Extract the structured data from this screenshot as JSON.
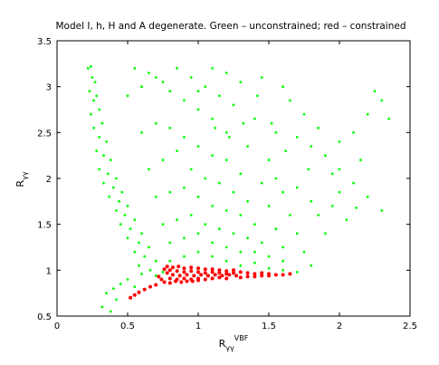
{
  "chart_data": {
    "type": "scatter",
    "title": "Model I, h, H and A degenerate. Green – unconstrained; red – constrained",
    "xlabel": {
      "base": "R",
      "sub": "γγ",
      "sup": "VBF"
    },
    "ylabel": {
      "base": "R",
      "sub": "γγ"
    },
    "xlim": [
      0,
      2.5
    ],
    "ylim": [
      0.5,
      3.5
    ],
    "xticks": [
      "0",
      "0.5",
      "1",
      "1.5",
      "2",
      "2.5"
    ],
    "yticks": [
      "0.5",
      "1",
      "1.5",
      "2",
      "2.5",
      "3",
      "3.5"
    ],
    "grid": false,
    "series": [
      {
        "color": "#00ff00",
        "points": [
          [
            0.22,
            3.2
          ],
          [
            0.24,
            3.22
          ],
          [
            0.25,
            3.1
          ],
          [
            0.27,
            3.05
          ],
          [
            0.23,
            2.95
          ],
          [
            0.26,
            2.85
          ],
          [
            0.28,
            2.9
          ],
          [
            0.3,
            2.75
          ],
          [
            0.24,
            2.7
          ],
          [
            0.32,
            2.6
          ],
          [
            0.26,
            2.55
          ],
          [
            0.3,
            2.45
          ],
          [
            0.35,
            2.4
          ],
          [
            0.28,
            2.3
          ],
          [
            0.33,
            2.25
          ],
          [
            0.38,
            2.2
          ],
          [
            0.3,
            2.1
          ],
          [
            0.36,
            2.05
          ],
          [
            0.42,
            2.0
          ],
          [
            0.33,
            1.95
          ],
          [
            0.4,
            1.9
          ],
          [
            0.46,
            1.85
          ],
          [
            0.37,
            1.8
          ],
          [
            0.44,
            1.75
          ],
          [
            0.5,
            1.7
          ],
          [
            0.42,
            1.65
          ],
          [
            0.48,
            1.6
          ],
          [
            0.55,
            1.55
          ],
          [
            0.45,
            1.5
          ],
          [
            0.52,
            1.45
          ],
          [
            0.6,
            1.4
          ],
          [
            0.5,
            1.35
          ],
          [
            0.58,
            1.3
          ],
          [
            0.65,
            1.25
          ],
          [
            0.55,
            1.2
          ],
          [
            0.62,
            1.15
          ],
          [
            0.7,
            1.1
          ],
          [
            0.58,
            1.05
          ],
          [
            0.66,
            1.0
          ],
          [
            0.75,
            0.98
          ],
          [
            0.6,
            0.96
          ],
          [
            0.7,
            0.94
          ],
          [
            0.5,
            0.9
          ],
          [
            0.45,
            0.85
          ],
          [
            0.4,
            0.8
          ],
          [
            0.35,
            0.75
          ],
          [
            0.32,
            0.6
          ],
          [
            0.38,
            0.55
          ],
          [
            0.42,
            0.68
          ],
          [
            0.55,
            0.82
          ],
          [
            0.8,
            1.1
          ],
          [
            0.9,
            1.15
          ],
          [
            1.0,
            1.2
          ],
          [
            1.1,
            1.15
          ],
          [
            1.2,
            1.1
          ],
          [
            1.3,
            1.05
          ],
          [
            1.4,
            1.08
          ],
          [
            1.5,
            1.02
          ],
          [
            1.6,
            1.0
          ],
          [
            1.7,
            0.98
          ],
          [
            0.8,
            1.3
          ],
          [
            0.9,
            1.35
          ],
          [
            1.0,
            1.4
          ],
          [
            1.1,
            1.3
          ],
          [
            1.2,
            1.25
          ],
          [
            1.3,
            1.2
          ],
          [
            1.4,
            1.2
          ],
          [
            1.5,
            1.15
          ],
          [
            1.6,
            1.1
          ],
          [
            1.8,
            1.05
          ],
          [
            0.75,
            1.5
          ],
          [
            0.85,
            1.55
          ],
          [
            0.95,
            1.6
          ],
          [
            1.05,
            1.5
          ],
          [
            1.15,
            1.45
          ],
          [
            1.25,
            1.4
          ],
          [
            1.35,
            1.35
          ],
          [
            1.45,
            1.3
          ],
          [
            1.6,
            1.25
          ],
          [
            1.75,
            1.2
          ],
          [
            0.7,
            1.8
          ],
          [
            0.8,
            1.85
          ],
          [
            0.9,
            1.9
          ],
          [
            1.0,
            1.8
          ],
          [
            1.1,
            1.7
          ],
          [
            1.2,
            1.65
          ],
          [
            1.3,
            1.6
          ],
          [
            1.4,
            1.5
          ],
          [
            1.55,
            1.45
          ],
          [
            1.7,
            1.4
          ],
          [
            0.65,
            2.1
          ],
          [
            0.75,
            2.2
          ],
          [
            0.85,
            2.3
          ],
          [
            0.95,
            2.1
          ],
          [
            1.05,
            2.0
          ],
          [
            1.15,
            1.95
          ],
          [
            1.25,
            1.85
          ],
          [
            1.35,
            1.75
          ],
          [
            1.5,
            1.7
          ],
          [
            1.65,
            1.6
          ],
          [
            0.6,
            2.5
          ],
          [
            0.7,
            2.6
          ],
          [
            0.8,
            2.55
          ],
          [
            0.9,
            2.45
          ],
          [
            1.0,
            2.35
          ],
          [
            1.1,
            2.25
          ],
          [
            1.2,
            2.2
          ],
          [
            1.3,
            2.05
          ],
          [
            1.45,
            1.95
          ],
          [
            1.6,
            1.85
          ],
          [
            0.5,
            2.9
          ],
          [
            0.6,
            3.0
          ],
          [
            0.7,
            3.1
          ],
          [
            0.8,
            2.95
          ],
          [
            0.9,
            2.85
          ],
          [
            1.0,
            2.75
          ],
          [
            1.1,
            2.65
          ],
          [
            1.2,
            2.5
          ],
          [
            1.35,
            2.35
          ],
          [
            1.5,
            2.2
          ],
          [
            0.55,
            3.2
          ],
          [
            0.65,
            3.15
          ],
          [
            0.75,
            3.05
          ],
          [
            0.85,
            3.2
          ],
          [
            0.95,
            3.1
          ],
          [
            1.05,
            3.0
          ],
          [
            1.15,
            2.9
          ],
          [
            1.25,
            2.8
          ],
          [
            1.4,
            2.65
          ],
          [
            1.55,
            2.5
          ],
          [
            1.7,
            2.45
          ],
          [
            1.8,
            2.35
          ],
          [
            1.9,
            2.25
          ],
          [
            2.0,
            2.1
          ],
          [
            2.1,
            1.95
          ],
          [
            2.2,
            1.8
          ],
          [
            2.3,
            1.65
          ],
          [
            1.95,
            1.7
          ],
          [
            2.05,
            1.55
          ],
          [
            1.9,
            1.4
          ],
          [
            2.1,
            2.5
          ],
          [
            2.2,
            2.7
          ],
          [
            2.3,
            2.85
          ],
          [
            2.25,
            2.95
          ],
          [
            2.35,
            2.65
          ],
          [
            2.15,
            2.2
          ],
          [
            2.0,
            2.4
          ],
          [
            1.85,
            2.55
          ],
          [
            1.75,
            2.7
          ],
          [
            1.65,
            2.85
          ],
          [
            1.6,
            3.0
          ],
          [
            1.45,
            3.1
          ],
          [
            1.3,
            3.05
          ],
          [
            1.2,
            3.15
          ],
          [
            1.1,
            3.2
          ],
          [
            1.0,
            2.95
          ],
          [
            1.55,
            2.0
          ],
          [
            1.7,
            1.9
          ],
          [
            1.8,
            1.75
          ],
          [
            1.85,
            1.6
          ],
          [
            2.0,
            1.85
          ],
          [
            2.12,
            1.68
          ],
          [
            1.95,
            2.05
          ],
          [
            1.78,
            2.1
          ],
          [
            1.62,
            2.3
          ],
          [
            1.52,
            2.6
          ],
          [
            1.42,
            2.9
          ],
          [
            1.32,
            2.6
          ],
          [
            1.22,
            2.45
          ],
          [
            1.12,
            2.55
          ]
        ]
      },
      {
        "color": "#ff0000",
        "points": [
          [
            0.78,
            1.04
          ],
          [
            0.82,
            1.03
          ],
          [
            0.86,
            1.04
          ],
          [
            0.9,
            1.02
          ],
          [
            0.95,
            1.03
          ],
          [
            1.0,
            1.02
          ],
          [
            1.05,
            1.01
          ],
          [
            1.1,
            1.01
          ],
          [
            1.15,
            1.0
          ],
          [
            1.2,
            0.99
          ],
          [
            0.8,
            1.0
          ],
          [
            0.85,
            0.99
          ],
          [
            0.9,
            0.98
          ],
          [
            0.95,
            0.99
          ],
          [
            1.0,
            0.98
          ],
          [
            1.05,
            0.97
          ],
          [
            1.1,
            0.98
          ],
          [
            1.15,
            0.97
          ],
          [
            1.2,
            0.96
          ],
          [
            1.25,
            0.97
          ],
          [
            0.82,
            0.95
          ],
          [
            0.87,
            0.94
          ],
          [
            0.92,
            0.95
          ],
          [
            0.97,
            0.94
          ],
          [
            1.02,
            0.95
          ],
          [
            1.07,
            0.94
          ],
          [
            1.12,
            0.95
          ],
          [
            1.17,
            0.94
          ],
          [
            1.22,
            0.95
          ],
          [
            1.27,
            0.94
          ],
          [
            0.8,
            0.91
          ],
          [
            0.85,
            0.9
          ],
          [
            0.9,
            0.91
          ],
          [
            0.95,
            0.9
          ],
          [
            1.0,
            0.91
          ],
          [
            1.05,
            0.9
          ],
          [
            1.1,
            0.91
          ],
          [
            1.15,
            0.92
          ],
          [
            1.2,
            0.91
          ],
          [
            1.3,
            0.92
          ],
          [
            0.76,
            0.87
          ],
          [
            0.8,
            0.86
          ],
          [
            0.84,
            0.88
          ],
          [
            0.88,
            0.87
          ],
          [
            0.92,
            0.88
          ],
          [
            0.96,
            0.88
          ],
          [
            1.0,
            0.89
          ],
          [
            1.35,
            0.93
          ],
          [
            1.4,
            0.93
          ],
          [
            1.45,
            0.94
          ],
          [
            1.5,
            0.94
          ],
          [
            1.55,
            0.95
          ],
          [
            1.6,
            0.95
          ],
          [
            1.65,
            0.96
          ],
          [
            1.3,
            0.98
          ],
          [
            1.35,
            0.97
          ],
          [
            1.4,
            0.96
          ],
          [
            1.45,
            0.97
          ],
          [
            1.5,
            0.96
          ],
          [
            1.25,
            1.0
          ],
          [
            0.7,
            0.84
          ],
          [
            0.66,
            0.82
          ],
          [
            0.62,
            0.79
          ],
          [
            0.58,
            0.76
          ],
          [
            0.55,
            0.73
          ],
          [
            0.52,
            0.7
          ],
          [
            0.74,
            0.9
          ],
          [
            0.72,
            0.93
          ],
          [
            0.78,
            0.97
          ],
          [
            0.76,
            1.01
          ]
        ]
      }
    ]
  }
}
